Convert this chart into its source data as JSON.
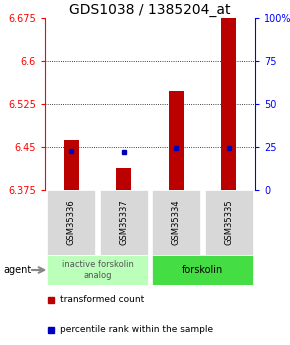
{
  "title": "GDS1038 / 1385204_at",
  "categories": [
    "GSM35336",
    "GSM35337",
    "GSM35334",
    "GSM35335"
  ],
  "bar_values": [
    6.463,
    6.413,
    6.548,
    6.675
  ],
  "bar_base": 6.375,
  "percentile_values": [
    6.443,
    6.442,
    6.448,
    6.449
  ],
  "ylim": [
    6.375,
    6.675
  ],
  "yticks_left": [
    6.375,
    6.45,
    6.525,
    6.6,
    6.675
  ],
  "yticks_right": [
    0,
    25,
    50,
    75,
    100
  ],
  "ytick_right_labels": [
    "0",
    "25",
    "50",
    "75",
    "100%"
  ],
  "bar_color": "#bb0000",
  "blue_color": "#0000bb",
  "group1_label": "inactive forskolin\nanalog",
  "group2_label": "forskolin",
  "group1_color": "#bbffbb",
  "group2_color": "#44dd44",
  "agent_label": "agent",
  "legend_red": "transformed count",
  "legend_blue": "percentile rank within the sample",
  "title_fontsize": 10,
  "tick_fontsize": 7,
  "sample_label_fontsize": 6,
  "group_label_fontsize": 6,
  "legend_fontsize": 6.5
}
